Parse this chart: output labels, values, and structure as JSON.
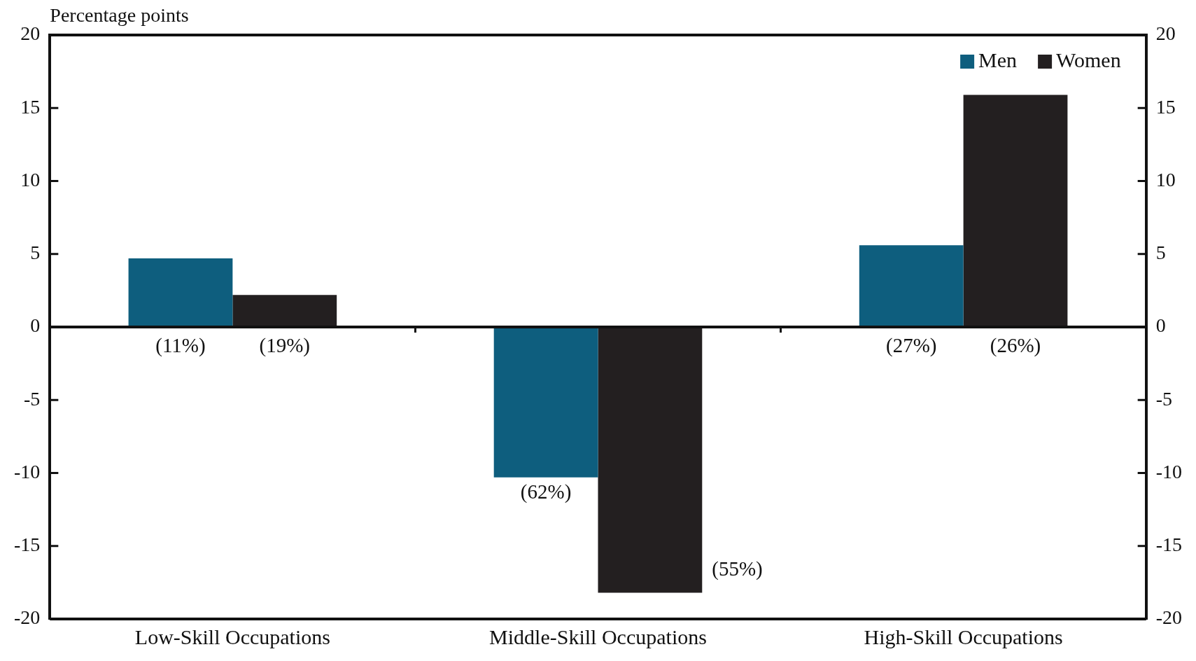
{
  "chart_data": {
    "type": "bar",
    "ylabel": "Percentage points",
    "categories": [
      "Low-Skill Occupations",
      "Middle-Skill Occupations",
      "High-Skill Occupations"
    ],
    "series": [
      {
        "name": "Men",
        "color": "#0e5e7e",
        "values": [
          4.7,
          -10.3,
          5.6
        ]
      },
      {
        "name": "Women",
        "color": "#231f20",
        "values": [
          2.2,
          -18.2,
          15.9
        ]
      }
    ],
    "annotations": [
      "(11%)",
      "(19%)",
      "(62%)",
      "(55%)",
      "(27%)",
      "(26%)"
    ],
    "ylim": [
      -20,
      20
    ],
    "yticks": [
      -20,
      -15,
      -10,
      -5,
      0,
      5,
      10,
      15,
      20
    ],
    "y2lim": [
      -20,
      20
    ],
    "y2ticks": [
      -20,
      -15,
      -10,
      -5,
      0,
      5,
      10,
      15,
      20
    ],
    "legend": "top right"
  }
}
